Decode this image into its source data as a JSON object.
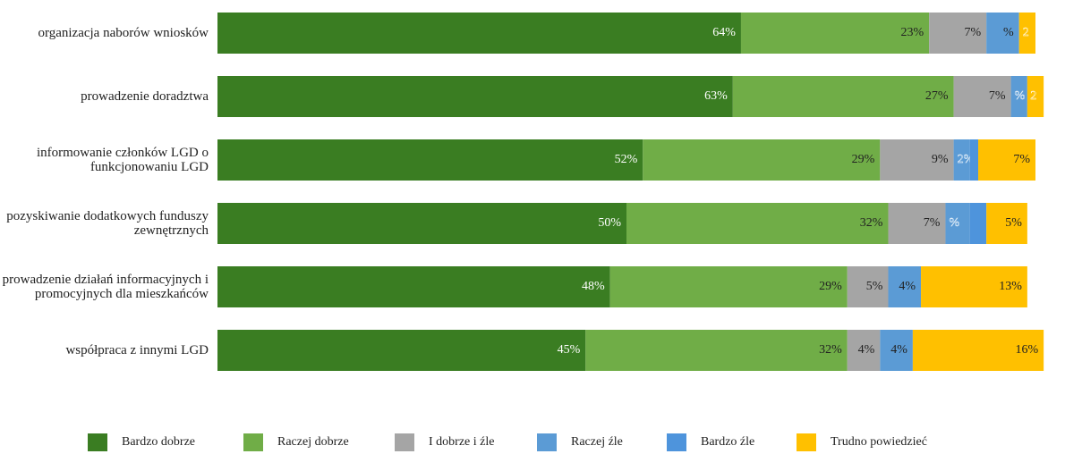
{
  "chart_data": {
    "type": "stacked_bar_horizontal",
    "categories": [
      "organizacja naborów wniosków",
      "prowadzenie doradztwa",
      "informowanie członków LGD o funkcjonowaniu LGD",
      "pozyskiwanie dodatkowych funduszy zewnętrznych",
      "prowadzenie działań informacyjnych i promocyjnych dla mieszkańców",
      "współpraca z innymi LGD"
    ],
    "xlim": [
      0,
      100
    ],
    "legend": "bottom",
    "series": [
      {
        "name": "Bardzo dobrze",
        "color": "#3a7d22",
        "values": [
          64,
          63,
          52,
          50,
          48,
          45
        ],
        "value_labels": [
          "64%",
          "63%",
          "52%",
          "50%",
          "48%",
          "45%"
        ]
      },
      {
        "name": "Raczej dobrze",
        "color": "#70ad47",
        "values": [
          23,
          27,
          29,
          32,
          29,
          32
        ],
        "value_labels": [
          "23%",
          "27%",
          "29%",
          "32%",
          "29%",
          "32%"
        ]
      },
      {
        "name": "I dobrze i źle",
        "color": "#a5a5a5",
        "values": [
          7,
          7,
          9,
          7,
          5,
          4
        ],
        "value_labels": [
          "7%",
          "7%",
          "9%",
          "7%",
          "5%",
          "4%"
        ]
      },
      {
        "name": "Raczej źle",
        "color": "#5b9bd5",
        "values": [
          4,
          2,
          2,
          3,
          4,
          4
        ],
        "value_labels": [
          "%",
          "%",
          "2%",
          "%",
          "4%",
          "4%"
        ]
      },
      {
        "name": "Bardzo źle",
        "color": "#4e94dc",
        "values": [
          0,
          0,
          1,
          2,
          0,
          0
        ],
        "value_labels": [
          null,
          null,
          null,
          null,
          null,
          null
        ]
      },
      {
        "name": "Trudno powiedzieć",
        "color": "#ffc000",
        "values": [
          2,
          2,
          7,
          5,
          13,
          16
        ],
        "value_labels": [
          "2",
          "2",
          "7%",
          "5%",
          "13%",
          "16%"
        ]
      }
    ]
  }
}
